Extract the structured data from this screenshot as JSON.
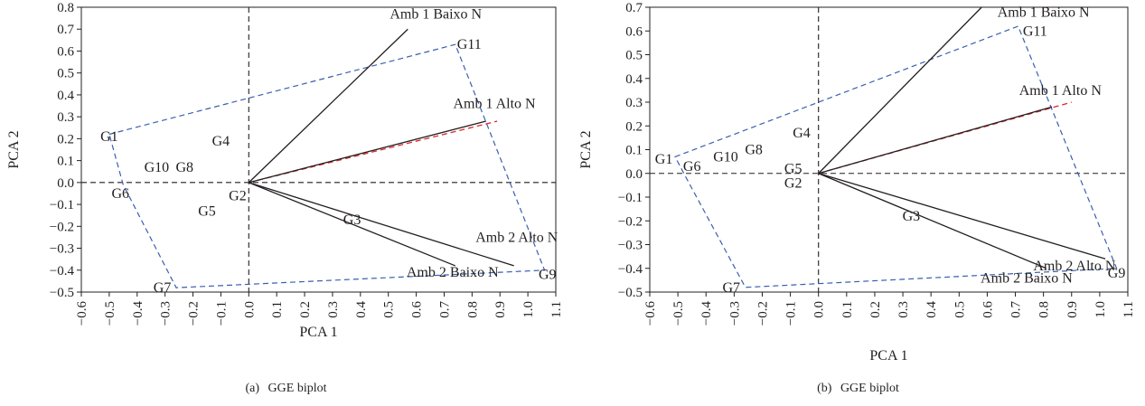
{
  "panels": [
    {
      "caption_label": "(a)",
      "caption_title": "GGE biplot",
      "chart_data": {
        "type": "scatter",
        "xlabel": "PCA 1",
        "ylabel": "PCA 2",
        "xlim": [
          -0.6,
          1.1
        ],
        "ylim": [
          -0.5,
          0.8
        ],
        "xticks": [
          "-0.6",
          "-0.5",
          "-0.4",
          "-0.3",
          "-0.2",
          "-0.1",
          "0.0",
          "0.1",
          "0.2",
          "0.3",
          "0.4",
          "0.5",
          "0.6",
          "0.7",
          "0.8",
          "0.9",
          "1.0",
          "1.1"
        ],
        "yticks": [
          "0.8",
          "0.7",
          "0.6",
          "0.5",
          "0.4",
          "0.3",
          "0.2",
          "0.1",
          "0.0",
          "-0.1",
          "-0.2",
          "-0.3",
          "-0.4",
          "-0.5"
        ],
        "genotypes": [
          {
            "label": "G1",
            "x": -0.5,
            "y": 0.21
          },
          {
            "label": "G2",
            "x": -0.04,
            "y": -0.06
          },
          {
            "label": "G3",
            "x": 0.37,
            "y": -0.17
          },
          {
            "label": "G4",
            "x": -0.1,
            "y": 0.19
          },
          {
            "label": "G5",
            "x": -0.15,
            "y": -0.13
          },
          {
            "label": "G6",
            "x": -0.46,
            "y": -0.05
          },
          {
            "label": "G7",
            "x": -0.31,
            "y": -0.48
          },
          {
            "label": "G8",
            "x": -0.23,
            "y": 0.07
          },
          {
            "label": "G9",
            "x": 1.07,
            "y": -0.42
          },
          {
            "label": "G10",
            "x": -0.33,
            "y": 0.07
          },
          {
            "label": "G11",
            "x": 0.79,
            "y": 0.63
          },
          {
            "label": "Amb 1 Baixo N",
            "x": 0.67,
            "y": 0.77
          },
          {
            "label": "Amb 1 Alto N",
            "x": 0.88,
            "y": 0.36
          },
          {
            "label": "Amb 2 Alto N",
            "x": 0.96,
            "y": -0.25
          },
          {
            "label": "Amb 2 Baixo N",
            "x": 0.73,
            "y": -0.41
          }
        ],
        "environment_vectors": [
          {
            "name": "Amb 1 Baixo N",
            "x": 0.57,
            "y": 0.7
          },
          {
            "name": "Amb 1 Alto N",
            "x": 0.85,
            "y": 0.28
          },
          {
            "name": "Amb 2 Alto N",
            "x": 0.95,
            "y": -0.38
          },
          {
            "name": "Amb 2 Baixo N",
            "x": 0.74,
            "y": -0.38
          }
        ],
        "average_axis": {
          "x": 0.89,
          "y": 0.28
        },
        "polygon": [
          [
            -0.5,
            0.22
          ],
          [
            0.74,
            0.63
          ],
          [
            1.06,
            -0.4
          ],
          [
            -0.26,
            -0.48
          ],
          [
            -0.45,
            -0.01
          ]
        ],
        "colors": {
          "polygon": "#3b5fae",
          "average_axis": "#e0262b",
          "vectors": "#231f20"
        }
      }
    },
    {
      "caption_label": "(b)",
      "caption_title": "GGE biplot",
      "chart_data": {
        "type": "scatter",
        "xlabel": "PCA 1",
        "ylabel": "PCA 2",
        "xlim": [
          -0.6,
          1.1
        ],
        "ylim": [
          -0.5,
          0.7
        ],
        "xticks": [
          "-0.6",
          "-0.5",
          "-0.4",
          "-0.3",
          "-0.2",
          "-0.1",
          "0.0",
          "0.1",
          "0.2",
          "0.3",
          "0.4",
          "0.5",
          "0.6",
          "0.7",
          "0.8",
          "0.9",
          "1.0",
          "1.1"
        ],
        "yticks": [
          "0.7",
          "0.6",
          "0.5",
          "0.4",
          "0.3",
          "0.2",
          "0.1",
          "0.0",
          "-0.1",
          "-0.2",
          "-0.3",
          "-0.4",
          "-0.5"
        ],
        "genotypes": [
          {
            "label": "G1",
            "x": -0.55,
            "y": 0.06
          },
          {
            "label": "G2",
            "x": -0.09,
            "y": -0.04
          },
          {
            "label": "G3",
            "x": 0.33,
            "y": -0.18
          },
          {
            "label": "G4",
            "x": -0.06,
            "y": 0.17
          },
          {
            "label": "G5",
            "x": -0.09,
            "y": 0.02
          },
          {
            "label": "G6",
            "x": -0.45,
            "y": 0.03
          },
          {
            "label": "G7",
            "x": -0.31,
            "y": -0.48
          },
          {
            "label": "G8",
            "x": -0.23,
            "y": 0.1
          },
          {
            "label": "G9",
            "x": 1.06,
            "y": -0.42
          },
          {
            "label": "G10",
            "x": -0.33,
            "y": 0.07
          },
          {
            "label": "G11",
            "x": 0.77,
            "y": 0.6
          },
          {
            "label": "Amb 1 Baixo N",
            "x": 0.8,
            "y": 0.68
          },
          {
            "label": "Amb 1 Alto N",
            "x": 0.86,
            "y": 0.35
          },
          {
            "label": "Amb 2 Alto N",
            "x": 0.91,
            "y": -0.39
          },
          {
            "label": "Amb 2 Baixo N",
            "x": 0.74,
            "y": -0.44
          }
        ],
        "environment_vectors": [
          {
            "name": "Amb 1 Baixo N",
            "x": 0.58,
            "y": 0.7
          },
          {
            "name": "Amb 1 Alto N",
            "x": 0.83,
            "y": 0.28
          },
          {
            "name": "Amb 2 Alto N",
            "x": 1.02,
            "y": -0.36
          },
          {
            "name": "Amb 2 Baixo N",
            "x": 0.81,
            "y": -0.4
          }
        ],
        "average_axis": {
          "x": 0.9,
          "y": 0.3
        },
        "polygon": [
          [
            -0.51,
            0.07
          ],
          [
            0.71,
            0.62
          ],
          [
            1.06,
            -0.4
          ],
          [
            -0.26,
            -0.48
          ],
          [
            -0.47,
            -0.02
          ]
        ],
        "colors": {
          "polygon": "#3b5fae",
          "average_axis": "#e0262b",
          "vectors": "#231f20"
        }
      }
    }
  ]
}
